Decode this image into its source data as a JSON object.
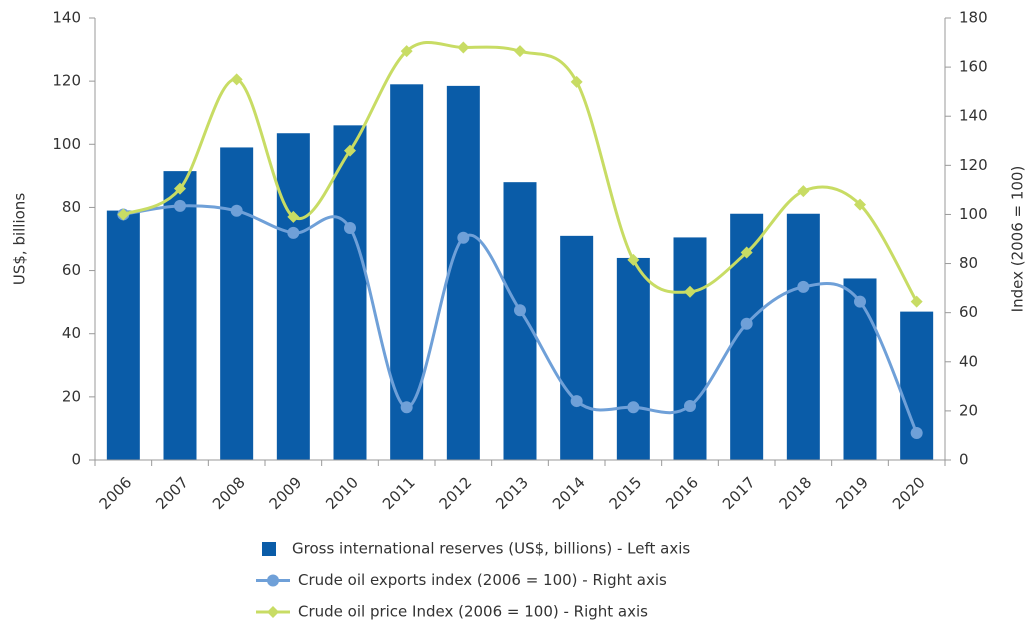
{
  "chart_data": {
    "type": "bar-line",
    "y_label": "US$, billions",
    "y2_label": "Index (2006 = 100)",
    "categories": [
      "2006",
      "2007",
      "2008",
      "2009",
      "2010",
      "2011",
      "2012",
      "2013",
      "2014",
      "2015",
      "2016",
      "2017",
      "2018",
      "2019",
      "2020"
    ],
    "series": [
      {
        "name": "Gross international reserves (US$, billions) - Left axis",
        "color": "#0a5ca8",
        "kind": "bar",
        "axis": "y",
        "values": [
          79,
          91.5,
          99,
          103.5,
          106,
          119,
          118.5,
          88,
          71,
          64,
          70.5,
          78,
          78,
          57.5,
          47
        ]
      },
      {
        "name": "Crude oil exports index (2006 = 100) - Right axis",
        "color": "#6fa0d8",
        "kind": "line",
        "marker": "circle",
        "axis": "y2",
        "values": [
          100,
          103.5,
          101.5,
          92.5,
          94.5,
          21.5,
          90.5,
          61,
          24,
          21.5,
          22,
          55.5,
          70.5,
          64.5,
          11
        ]
      },
      {
        "name": "Crude oil price Index (2006 = 100) - Right axis",
        "color": "#c8dc64",
        "kind": "line",
        "marker": "diamond",
        "axis": "y2",
        "values": [
          100,
          110.5,
          155,
          99,
          126,
          166.5,
          168,
          166.5,
          154,
          81.5,
          68.5,
          84.5,
          109.5,
          104,
          64.5
        ]
      }
    ],
    "ylim": [
      0,
      140
    ],
    "yticks": [
      0,
      20,
      40,
      60,
      80,
      100,
      120,
      140
    ],
    "y2lim": [
      0,
      180
    ],
    "y2ticks": [
      0,
      20,
      40,
      60,
      80,
      100,
      120,
      140,
      160,
      180
    ],
    "legend": "bottom"
  }
}
